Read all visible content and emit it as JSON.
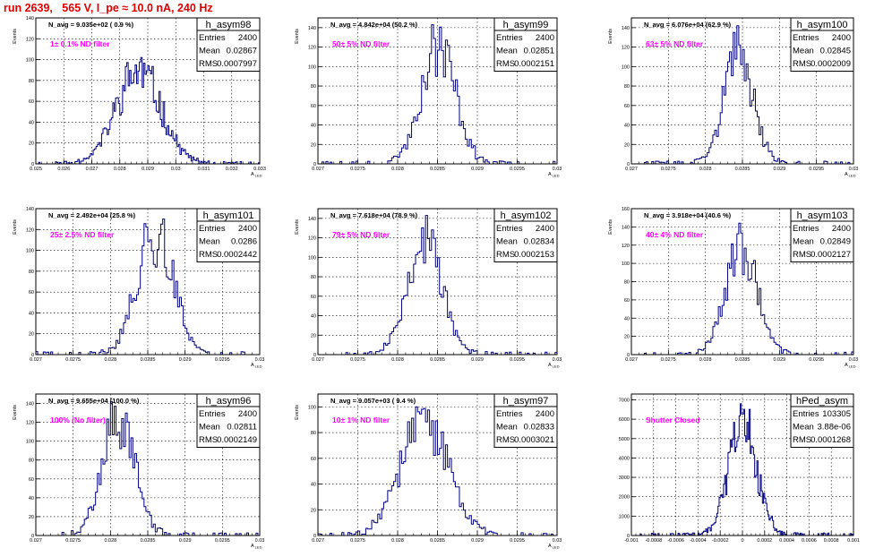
{
  "run_title": "run 2639,   565 V, I_pe ≈ 10.0 nA, 240 Hz",
  "stats_labels": {
    "entries": "Entries",
    "mean": "Mean",
    "rms": "RMS"
  },
  "chart_data": [
    {
      "type": "histogram",
      "name": "h_asym98",
      "navg": "N_avg = 9.035e+02 ( 0.9 %)",
      "filter": "1± 0.1% ND filter",
      "entries": "2400",
      "mean": "0.02867",
      "rms": "0.0007997",
      "mu": 0.02867,
      "sigma": 0.0007997,
      "peak": 102,
      "nbins": 160,
      "xlim": [
        0.025,
        0.033
      ],
      "ylim": [
        0,
        140
      ],
      "xticks": [
        0.025,
        0.026,
        0.027,
        0.028,
        0.029,
        0.03,
        0.031,
        0.032,
        0.033
      ],
      "xticklabels": [
        "0.025",
        "0.026",
        "0.027",
        "0.028",
        "0.029",
        "0.03",
        "0.031",
        "0.032",
        "0.033"
      ],
      "yticks": [
        0,
        20,
        40,
        60,
        80,
        100,
        120,
        140
      ],
      "yticklabels": [
        "0",
        "20",
        "40",
        "60",
        "80",
        "100",
        "120",
        "140"
      ],
      "xlabel": "A_{LED}",
      "ylabel": "Events",
      "seed": 11
    },
    {
      "type": "histogram",
      "name": "h_asym99",
      "navg": "N_avg = 4.842e+04 (50.2 %)",
      "filter": "50± 5% ND filter",
      "entries": "2400",
      "mean": "0.02851",
      "rms": "0.0002151",
      "mu": 0.02851,
      "sigma": 0.0002151,
      "peak": 143,
      "nbins": 120,
      "xlim": [
        0.027,
        0.03
      ],
      "ylim": [
        0,
        150
      ],
      "xticks": [
        0.027,
        0.0275,
        0.028,
        0.0285,
        0.029,
        0.0295,
        0.03
      ],
      "xticklabels": [
        "0.027",
        "0.0275",
        "0.028",
        "0.0285",
        "0.029",
        "0.0295",
        "0.03"
      ],
      "yticks": [
        0,
        20,
        40,
        60,
        80,
        100,
        120,
        140
      ],
      "yticklabels": [
        "0",
        "20",
        "40",
        "60",
        "80",
        "100",
        "120",
        "140"
      ],
      "xlabel": "A_{LED}",
      "ylabel": "Events",
      "seed": 23
    },
    {
      "type": "histogram",
      "name": "h_asym100",
      "navg": "N_avg = 6.076e+04 (62.9 %)",
      "filter": "63± 5% ND filter",
      "entries": "2400",
      "mean": "0.02845",
      "rms": "0.0002009",
      "mu": 0.02845,
      "sigma": 0.0002009,
      "peak": 142,
      "nbins": 120,
      "xlim": [
        0.027,
        0.03
      ],
      "ylim": [
        0,
        150
      ],
      "xticks": [
        0.027,
        0.0275,
        0.028,
        0.0285,
        0.029,
        0.0295,
        0.03
      ],
      "xticklabels": [
        "0.027",
        "0.0275",
        "0.028",
        "0.0285",
        "0.029",
        "0.0295",
        "0.03"
      ],
      "yticks": [
        0,
        20,
        40,
        60,
        80,
        100,
        120,
        140
      ],
      "yticklabels": [
        "0",
        "20",
        "40",
        "60",
        "80",
        "100",
        "120",
        "140"
      ],
      "xlabel": "A_{LED}",
      "ylabel": "Events",
      "seed": 37
    },
    {
      "type": "histogram",
      "name": "h_asym101",
      "navg": "N_avg = 2.492e+04 (25.8 %)",
      "filter": "25± 2.5% ND filter",
      "entries": "2400",
      "mean": "0.0286",
      "rms": "0.0002442",
      "mu": 0.0286,
      "sigma": 0.0002442,
      "peak": 130,
      "nbins": 120,
      "xlim": [
        0.027,
        0.03
      ],
      "ylim": [
        0,
        140
      ],
      "xticks": [
        0.027,
        0.0275,
        0.028,
        0.0285,
        0.029,
        0.0295,
        0.03
      ],
      "xticklabels": [
        "0.027",
        "0.0275",
        "0.028",
        "0.0285",
        "0.029",
        "0.0295",
        "0.03"
      ],
      "yticks": [
        0,
        20,
        40,
        60,
        80,
        100,
        120,
        140
      ],
      "yticklabels": [
        "0",
        "20",
        "40",
        "60",
        "80",
        "100",
        "120",
        "140"
      ],
      "xlabel": "A_{LED}",
      "ylabel": "Events",
      "seed": 41
    },
    {
      "type": "histogram",
      "name": "h_asym102",
      "navg": "N_avg = 7.618e+04 (78.9 %)",
      "filter": "79± 5% ND filter",
      "entries": "2400",
      "mean": "0.02834",
      "rms": "0.0002153",
      "mu": 0.02834,
      "sigma": 0.0002153,
      "peak": 143,
      "nbins": 120,
      "xlim": [
        0.027,
        0.03
      ],
      "ylim": [
        0,
        150
      ],
      "xticks": [
        0.027,
        0.0275,
        0.028,
        0.0285,
        0.029,
        0.0295,
        0.03
      ],
      "xticklabels": [
        "0.027",
        "0.0275",
        "0.028",
        "0.0285",
        "0.029",
        "0.0295",
        "0.03"
      ],
      "yticks": [
        0,
        20,
        40,
        60,
        80,
        100,
        120,
        140
      ],
      "yticklabels": [
        "0",
        "20",
        "40",
        "60",
        "80",
        "100",
        "120",
        "140"
      ],
      "xlabel": "A_{LED}",
      "ylabel": "Events",
      "seed": 53
    },
    {
      "type": "histogram",
      "name": "h_asym103",
      "navg": "N_avg = 3.918e+04 (40.6 %)",
      "filter": "40± 4% ND filter",
      "entries": "2400",
      "mean": "0.02849",
      "rms": "0.0002127",
      "mu": 0.02849,
      "sigma": 0.0002127,
      "peak": 144,
      "nbins": 120,
      "xlim": [
        0.027,
        0.03
      ],
      "ylim": [
        0,
        160
      ],
      "xticks": [
        0.027,
        0.0275,
        0.028,
        0.0285,
        0.029,
        0.0295,
        0.03
      ],
      "xticklabels": [
        "0.027",
        "0.0275",
        "0.028",
        "0.0285",
        "0.029",
        "0.0295",
        "0.03"
      ],
      "yticks": [
        0,
        20,
        40,
        60,
        80,
        100,
        120,
        140,
        160
      ],
      "yticklabels": [
        "0",
        "20",
        "40",
        "60",
        "80",
        "100",
        "120",
        "140",
        "160"
      ],
      "xlabel": "A_{LED}",
      "ylabel": "Events",
      "seed": 67
    },
    {
      "type": "histogram",
      "name": "h_asym96",
      "navg": "N_avg = 9.655e+04 (100.0 %)",
      "filter": "100% (No filter)",
      "entries": "2400",
      "mean": "0.02811",
      "rms": "0.0002149",
      "mu": 0.02811,
      "sigma": 0.0002149,
      "peak": 142,
      "nbins": 120,
      "xlim": [
        0.027,
        0.03
      ],
      "ylim": [
        0,
        150
      ],
      "xticks": [
        0.027,
        0.0275,
        0.028,
        0.0285,
        0.029,
        0.0295,
        0.03
      ],
      "xticklabels": [
        "0.027",
        "0.0275",
        "0.028",
        "0.0285",
        "0.029",
        "0.0295",
        "0.03"
      ],
      "yticks": [
        0,
        20,
        40,
        60,
        80,
        100,
        120,
        140
      ],
      "yticklabels": [
        "0",
        "20",
        "40",
        "60",
        "80",
        "100",
        "120",
        "140"
      ],
      "xlabel": "A_{LED}",
      "ylabel": "Events",
      "seed": 71
    },
    {
      "type": "histogram",
      "name": "h_asym97",
      "navg": "N_avg = 9.057e+03 ( 9.4 %)",
      "filter": "10± 1% ND filter",
      "entries": "2400",
      "mean": "0.02833",
      "rms": "0.0003021",
      "mu": 0.02833,
      "sigma": 0.0003021,
      "peak": 100,
      "nbins": 120,
      "xlim": [
        0.027,
        0.03
      ],
      "ylim": [
        0,
        110
      ],
      "xticks": [
        0.027,
        0.0275,
        0.028,
        0.0285,
        0.029,
        0.0295,
        0.03
      ],
      "xticklabels": [
        "0.027",
        "0.0275",
        "0.028",
        "0.0285",
        "0.029",
        "0.0295",
        "0.03"
      ],
      "yticks": [
        0,
        20,
        40,
        60,
        80,
        100
      ],
      "yticklabels": [
        "0",
        "20",
        "40",
        "60",
        "80",
        "100"
      ],
      "xlabel": "A_{LED}",
      "ylabel": "Events",
      "seed": 83
    },
    {
      "type": "histogram",
      "name": "hPed_asym",
      "navg": "",
      "filter": "Shutter Closed",
      "entries": "103305",
      "mean": "3.88e-06",
      "rms": "0.0001268",
      "mu": 3.88e-06,
      "sigma": 0.0001268,
      "peak": 6800,
      "nbins": 200,
      "xlim": [
        -0.001,
        0.001
      ],
      "ylim": [
        0,
        7300
      ],
      "xticks": [
        -0.001,
        -0.0008,
        -0.0006,
        -0.0004,
        -0.0002,
        0,
        0.0002,
        0.0004,
        0.0006,
        0.0008,
        0.001
      ],
      "xticklabels": [
        "-0.001",
        "-0.0008",
        "-0.0006",
        "-0.0004",
        "-0.0002",
        "0",
        "0.0002",
        "0.0004",
        "0.0006",
        "0.0008",
        "0.001"
      ],
      "yticks": [
        0,
        1000,
        2000,
        3000,
        4000,
        5000,
        6000,
        7000
      ],
      "yticklabels": [
        "0",
        "1000",
        "2000",
        "3000",
        "4000",
        "5000",
        "6000",
        "7000"
      ],
      "xlabel": "",
      "ylabel": "",
      "seed": 97
    }
  ]
}
